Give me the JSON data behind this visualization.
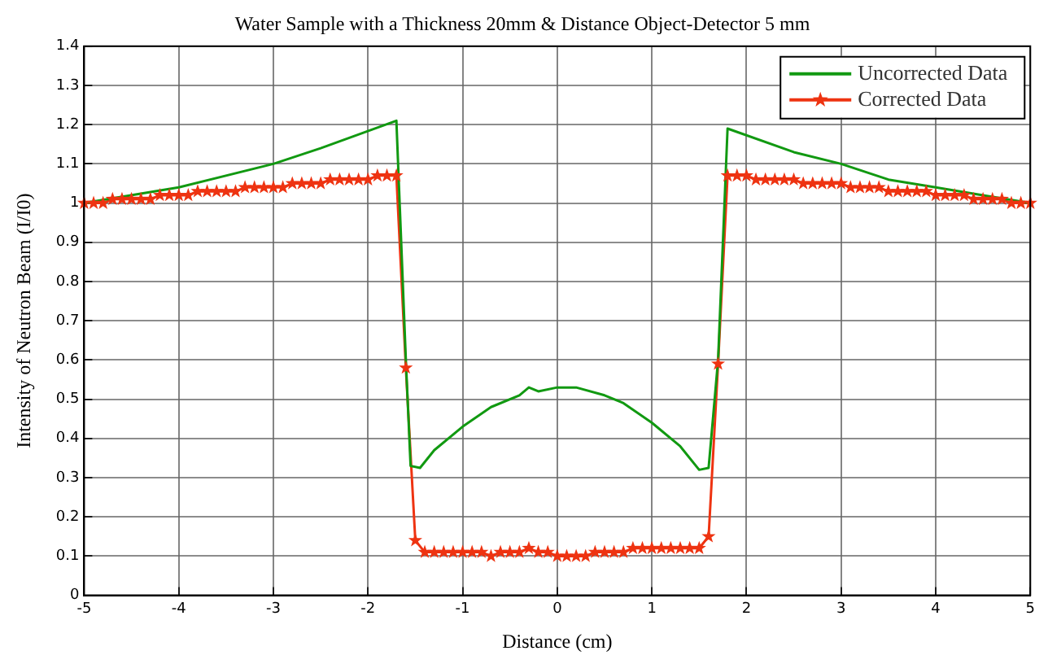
{
  "chart_data": {
    "type": "line",
    "title": "Water Sample with a Thickness 20mm & Distance Object-Detector 5 mm",
    "xlabel": "Distance (cm)",
    "ylabel": "Intensity of Neutron Beam (I/I0)",
    "xlim": [
      -5,
      5
    ],
    "xticks": [
      -5,
      -4,
      -3,
      -2,
      -1,
      0,
      1,
      2,
      3,
      4,
      5
    ],
    "ylim": [
      0,
      1.4
    ],
    "yticks": [
      0,
      0.1,
      0.2,
      0.3,
      0.4,
      0.5,
      0.6,
      0.7,
      0.8,
      0.9,
      1,
      1.1,
      1.2,
      1.3,
      1.4
    ],
    "grid": true,
    "legend": "top right",
    "line_style": "solid",
    "series": [
      {
        "name": "Uncorrected Data",
        "color": "#119911",
        "marker": "none",
        "x": [
          -5,
          -4,
          -3,
          -2.5,
          -1.7,
          -1.6,
          -1.55,
          -1.45,
          -1.3,
          -1,
          -0.7,
          -0.4,
          -0.3,
          -0.2,
          0,
          0.2,
          0.5,
          0.7,
          1,
          1.3,
          1.5,
          1.6,
          1.7,
          1.8,
          2.5,
          3,
          3.5,
          4,
          4.5,
          5
        ],
        "values": [
          1.0,
          1.04,
          1.1,
          1.14,
          1.21,
          0.6,
          0.33,
          0.325,
          0.37,
          0.43,
          0.48,
          0.51,
          0.53,
          0.52,
          0.53,
          0.53,
          0.51,
          0.49,
          0.44,
          0.38,
          0.32,
          0.325,
          0.6,
          1.19,
          1.13,
          1.1,
          1.06,
          1.04,
          1.02,
          1.0
        ]
      },
      {
        "name": "Corrected Data",
        "color": "#ee3311",
        "marker": "star",
        "x": [
          -5,
          -4.9,
          -4.8,
          -4.7,
          -4.6,
          -4.5,
          -4.4,
          -4.3,
          -4.2,
          -4.1,
          -4,
          -3.9,
          -3.8,
          -3.7,
          -3.6,
          -3.5,
          -3.4,
          -3.3,
          -3.2,
          -3.1,
          -3,
          -2.9,
          -2.8,
          -2.7,
          -2.6,
          -2.5,
          -2.4,
          -2.3,
          -2.2,
          -2.1,
          -2,
          -1.9,
          -1.8,
          -1.7,
          -1.6,
          -1.5,
          -1.4,
          -1.3,
          -1.2,
          -1.1,
          -1,
          -0.9,
          -0.8,
          -0.7,
          -0.6,
          -0.5,
          -0.4,
          -0.3,
          -0.2,
          -0.1,
          0,
          0.1,
          0.2,
          0.3,
          0.4,
          0.5,
          0.6,
          0.7,
          0.8,
          0.9,
          1,
          1.1,
          1.2,
          1.3,
          1.4,
          1.5,
          1.6,
          1.7,
          1.8,
          1.9,
          2,
          2.1,
          2.2,
          2.3,
          2.4,
          2.5,
          2.6,
          2.7,
          2.8,
          2.9,
          3,
          3.1,
          3.2,
          3.3,
          3.4,
          3.5,
          3.6,
          3.7,
          3.8,
          3.9,
          4,
          4.1,
          4.2,
          4.3,
          4.4,
          4.5,
          4.6,
          4.7,
          4.8,
          4.9,
          5
        ],
        "values": [
          1.0,
          1.0,
          1.0,
          1.01,
          1.01,
          1.01,
          1.01,
          1.01,
          1.02,
          1.02,
          1.02,
          1.02,
          1.03,
          1.03,
          1.03,
          1.03,
          1.03,
          1.04,
          1.04,
          1.04,
          1.04,
          1.04,
          1.05,
          1.05,
          1.05,
          1.05,
          1.06,
          1.06,
          1.06,
          1.06,
          1.06,
          1.07,
          1.07,
          1.07,
          0.58,
          0.14,
          0.11,
          0.11,
          0.11,
          0.11,
          0.11,
          0.11,
          0.11,
          0.1,
          0.11,
          0.11,
          0.11,
          0.12,
          0.11,
          0.11,
          0.1,
          0.1,
          0.1,
          0.1,
          0.11,
          0.11,
          0.11,
          0.11,
          0.12,
          0.12,
          0.12,
          0.12,
          0.12,
          0.12,
          0.12,
          0.12,
          0.15,
          0.59,
          1.07,
          1.07,
          1.07,
          1.06,
          1.06,
          1.06,
          1.06,
          1.06,
          1.05,
          1.05,
          1.05,
          1.05,
          1.05,
          1.04,
          1.04,
          1.04,
          1.04,
          1.03,
          1.03,
          1.03,
          1.03,
          1.03,
          1.02,
          1.02,
          1.02,
          1.02,
          1.01,
          1.01,
          1.01,
          1.01,
          1.0,
          1.0,
          1.0
        ]
      }
    ]
  }
}
